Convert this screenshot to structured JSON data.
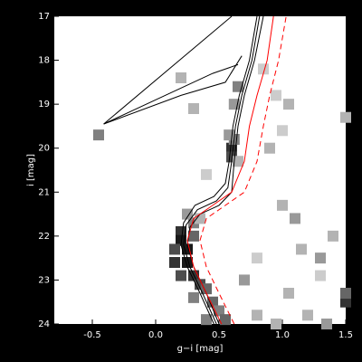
{
  "chart_data": {
    "type": "line",
    "x_label": "g−i [mag]",
    "y_label": "i [mag]",
    "xlim": [
      -0.8,
      1.5
    ],
    "ylim": [
      24,
      17
    ],
    "xticks": [
      -0.5,
      {
        "value": 0,
        "label": "0.0"
      },
      0.5,
      {
        "value": 1,
        "label": "1.0"
      },
      1.5
    ],
    "yticks": [
      17,
      18,
      19,
      20,
      21,
      22,
      23,
      24
    ],
    "density": {
      "x": [
        0.2,
        0.2,
        0.15,
        0.15,
        0.2,
        0.25,
        0.3,
        0.25,
        0.3,
        0.35,
        0.4,
        0.3,
        0.45,
        0.5,
        0.55,
        0.4,
        0.3,
        0.35,
        0.25,
        0.6,
        0.6,
        0.62,
        0.58,
        0.65,
        0.62,
        0.65,
        -0.45,
        0.2,
        0.9,
        1.0,
        1.0,
        1.1,
        1.15,
        0.8,
        1.4,
        1.3,
        1.3,
        1.5,
        1.5,
        0.8,
        1.05,
        1.2,
        1.35,
        0.95,
        1.05,
        0.3,
        1.5,
        0.85,
        0.4,
        0.7,
        0.95
      ],
      "y": [
        21.9,
        22.1,
        22.3,
        22.6,
        22.9,
        22.3,
        22.0,
        22.6,
        22.9,
        23.1,
        23.2,
        23.4,
        23.5,
        23.7,
        23.9,
        23.9,
        21.7,
        21.6,
        21.5,
        20.0,
        20.2,
        19.8,
        19.7,
        20.3,
        19.0,
        18.6,
        19.7,
        18.4,
        20.0,
        19.6,
        21.3,
        21.6,
        22.3,
        22.5,
        22.0,
        22.5,
        22.9,
        23.5,
        23.3,
        23.8,
        23.3,
        23.8,
        24.0,
        18.8,
        19.0,
        19.1,
        19.3,
        18.2,
        20.6,
        23.0,
        24.0
      ],
      "values": [
        0.8,
        0.9,
        0.7,
        0.8,
        0.7,
        0.9,
        0.6,
        0.9,
        0.8,
        0.7,
        0.6,
        0.5,
        0.6,
        0.5,
        0.6,
        0.5,
        0.5,
        0.3,
        0.4,
        0.8,
        0.7,
        0.5,
        0.4,
        0.3,
        0.4,
        0.5,
        0.5,
        0.3,
        0.3,
        0.2,
        0.3,
        0.4,
        0.3,
        0.2,
        0.3,
        0.4,
        0.2,
        0.8,
        0.6,
        0.3,
        0.3,
        0.3,
        0.4,
        0.2,
        0.3,
        0.3,
        0.3,
        0.2,
        0.2,
        0.4,
        0.3
      ]
    },
    "series": [
      {
        "color": "#000000",
        "x": [
          0.5,
          0.4,
          0.3,
          0.25,
          0.27,
          0.35,
          0.5,
          0.6,
          0.62,
          0.65,
          0.7,
          0.78,
          0.85
        ],
        "values": [
          24,
          23.3,
          22.7,
          22.2,
          21.8,
          21.5,
          21.3,
          21.0,
          20.3,
          19.5,
          18.8,
          18.0,
          17.0
        ]
      },
      {
        "color": "#000000",
        "x": [
          0.48,
          0.37,
          0.27,
          0.22,
          0.24,
          0.33,
          0.48,
          0.57,
          0.6,
          0.63,
          0.68,
          0.76,
          0.82
        ],
        "values": [
          24,
          23.3,
          22.7,
          22.2,
          21.75,
          21.4,
          21.2,
          20.9,
          20.3,
          19.5,
          18.8,
          18.0,
          17.0
        ]
      },
      {
        "color": "#000000",
        "x": [
          0.46,
          0.35,
          0.25,
          0.2,
          0.22,
          0.31,
          0.46,
          0.55,
          0.58,
          0.61,
          0.66,
          0.74,
          0.8
        ],
        "values": [
          24,
          23.3,
          22.7,
          22.2,
          21.7,
          21.3,
          21.1,
          20.8,
          20.3,
          19.5,
          18.8,
          18.0,
          17.0
        ]
      },
      {
        "color": "#000000",
        "x": [
          -0.41,
          0.6
        ],
        "values": [
          19.45,
          17.0
        ]
      },
      {
        "color": "#000000",
        "x": [
          -0.41,
          0.0,
          0.45,
          0.65
        ],
        "values": [
          19.45,
          18.9,
          18.3,
          18.1
        ]
      },
      {
        "color": "#000000",
        "x": [
          -0.41,
          0.2,
          0.55,
          0.68
        ],
        "values": [
          19.45,
          18.8,
          18.5,
          17.9
        ]
      },
      {
        "color": "#ff0000",
        "x": [
          0.52,
          0.4,
          0.3,
          0.25,
          0.3,
          0.45,
          0.6,
          0.7,
          0.74,
          0.8,
          0.88,
          0.93
        ],
        "values": [
          24,
          23.3,
          22.7,
          22.1,
          21.6,
          21.3,
          21.0,
          20.3,
          19.5,
          18.8,
          18.0,
          17.0
        ]
      },
      {
        "color": "#ff0000",
        "dash": true,
        "x": [
          0.62,
          0.5,
          0.4,
          0.35,
          0.4,
          0.55,
          0.7,
          0.8,
          0.85,
          0.9,
          0.97,
          1.03
        ],
        "values": [
          24,
          23.3,
          22.7,
          22.1,
          21.6,
          21.3,
          21.0,
          20.3,
          19.5,
          18.8,
          18.0,
          17.0
        ]
      }
    ]
  }
}
